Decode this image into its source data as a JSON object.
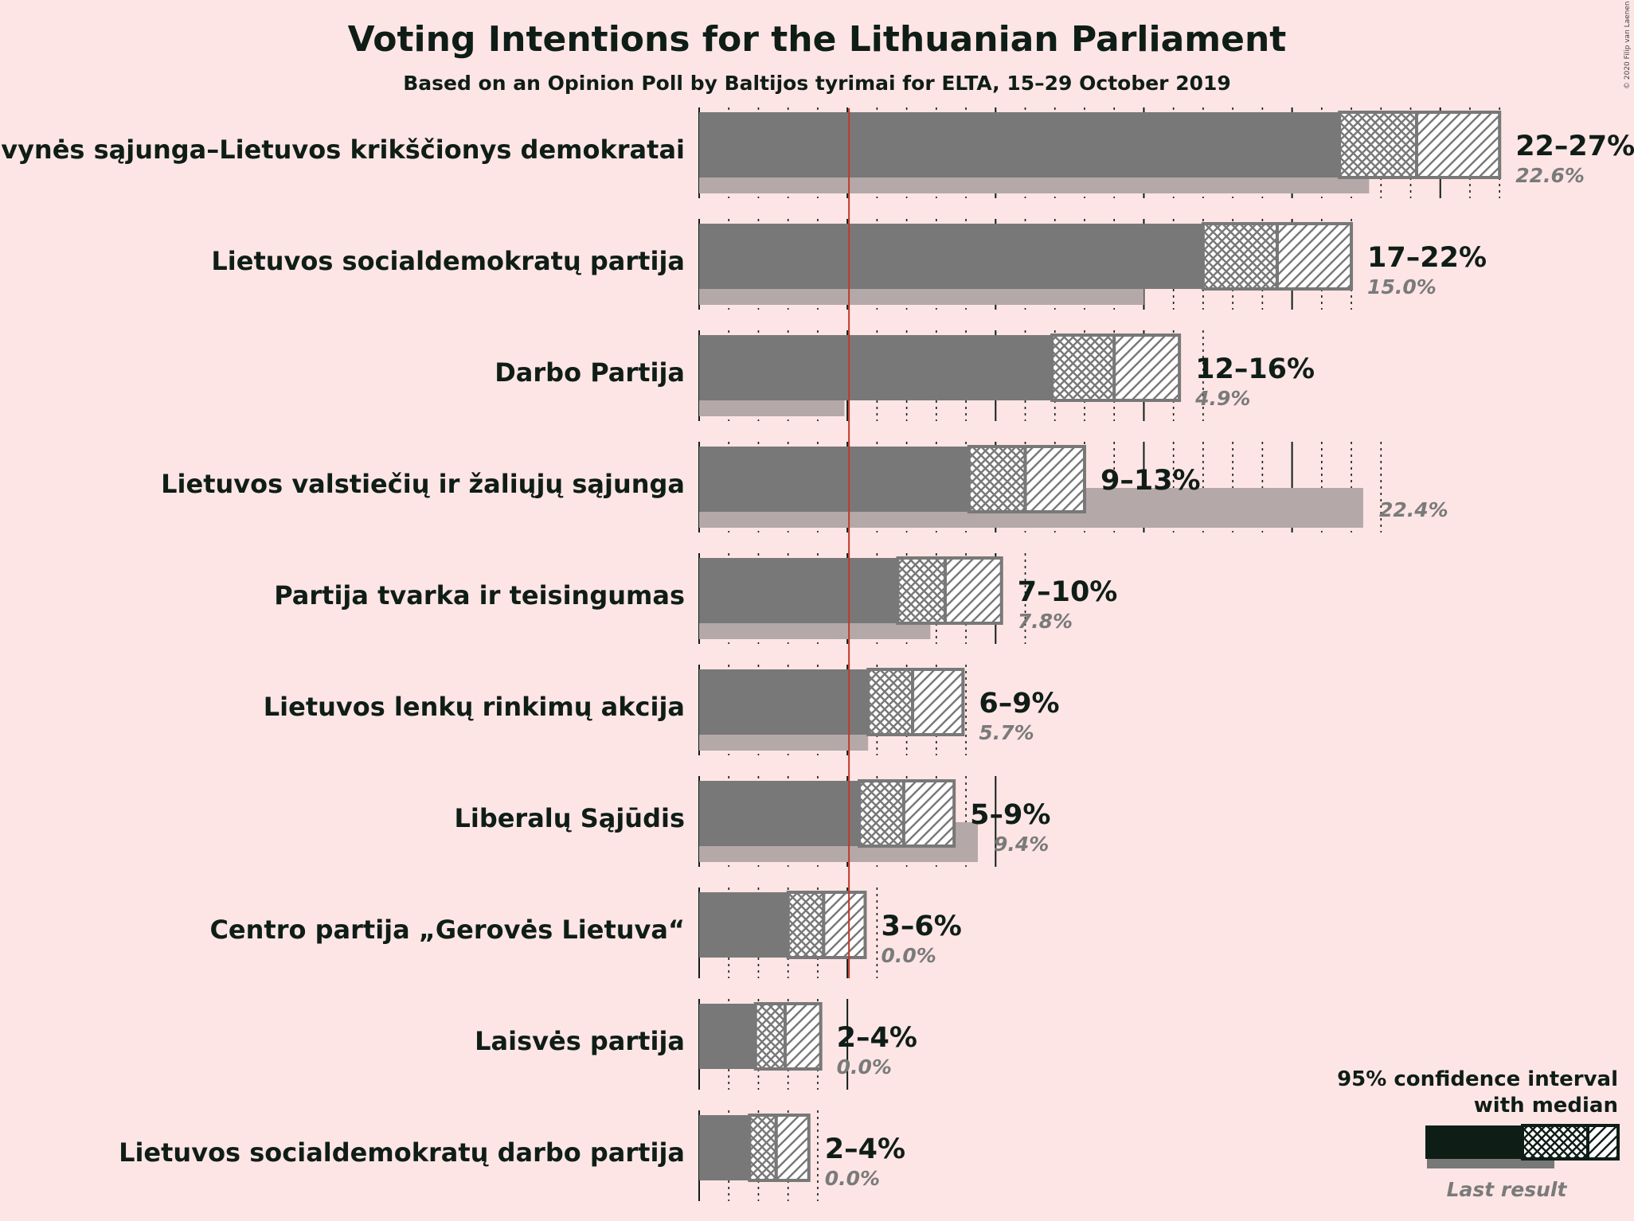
{
  "chart_data": {
    "type": "bar",
    "title": "Voting Intentions for the Lithuanian Parliament",
    "subtitle": "Based on an Opinion Poll by Baltijos tyrimai for ELTA, 15–29 October 2019",
    "copyright": "© 2020 Filip van Laenen",
    "threshold": 5,
    "xlim": [
      0,
      28.5
    ],
    "parties": [
      {
        "name": "Tėvynės sąjunga–Lietuvos krikščionys demokratai",
        "range_label": "22–27%",
        "last_label": "22.6%",
        "last": 22.6,
        "low": 21.6,
        "q_low": 22.0,
        "median": 24.2,
        "q_high": 25.0,
        "high": 27.0
      },
      {
        "name": "Lietuvos socialdemokratų partija",
        "range_label": "17–22%",
        "last_label": "15.0%",
        "last": 15.0,
        "low": 17.0,
        "q_low": 17.2,
        "median": 19.5,
        "q_high": 20.2,
        "high": 22.0
      },
      {
        "name": "Darbo Partija",
        "range_label": "12–16%",
        "last_label": "4.9%",
        "last": 4.9,
        "low": 11.9,
        "q_low": 12.0,
        "median": 14.0,
        "q_high": 15.0,
        "high": 16.2
      },
      {
        "name": "Lietuvos valstiečių ir žaliųjų sąjunga",
        "range_label": "9–13%",
        "last_label": "22.4%",
        "last": 22.4,
        "low": 9.1,
        "q_low": 9.2,
        "median": 11.0,
        "q_high": 12.1,
        "high": 13.0
      },
      {
        "name": "Partija tvarka ir teisingumas",
        "range_label": "7–10%",
        "last_label": "7.8%",
        "last": 7.8,
        "low": 6.7,
        "q_low": 6.8,
        "median": 8.3,
        "q_high": 10.0,
        "high": 10.2
      },
      {
        "name": "Lietuvos lenkų rinkimų akcija",
        "range_label": "6–9%",
        "last_label": "5.7%",
        "last": 5.7,
        "low": 5.7,
        "q_low": 6.0,
        "median": 7.2,
        "q_high": 9.0,
        "high": 8.9
      },
      {
        "name": "Liberalų Sąjūdis",
        "range_label": "5–9%",
        "last_label": "9.4%",
        "last": 9.4,
        "low": 5.4,
        "q_low": 5.6,
        "median": 6.9,
        "q_high": 9.0,
        "high": 8.6
      },
      {
        "name": "Centro partija „Gerovės Lietuva“",
        "range_label": "3–6%",
        "last_label": "0.0%",
        "last": 0.0,
        "low": 3.0,
        "q_low": 3.1,
        "median": 4.2,
        "q_high": 4.5,
        "high": 5.6
      },
      {
        "name": "Laisvės partija",
        "range_label": "2–4%",
        "last_label": "0.0%",
        "last": 0.0,
        "low": 1.9,
        "q_low": 2.0,
        "median": 2.9,
        "q_high": 3.2,
        "high": 4.1
      },
      {
        "name": "Lietuvos socialdemokratų darbo partija",
        "range_label": "2–4%",
        "last_label": "0.0%",
        "last": 0.0,
        "low": 1.7,
        "q_low": 1.8,
        "median": 2.6,
        "q_high": 3.0,
        "high": 3.7
      }
    ],
    "legend": {
      "line1": "95% confidence interval",
      "line2": "with median",
      "last_result": "Last result",
      "position": "bottom-right"
    }
  },
  "colors": {
    "background": "#fde5e5",
    "bar": "#787878",
    "last_result": "#b4a8a8",
    "threshold": "#c0392b",
    "text": "#0f1d17",
    "legend_bar": "#0f1d17"
  }
}
